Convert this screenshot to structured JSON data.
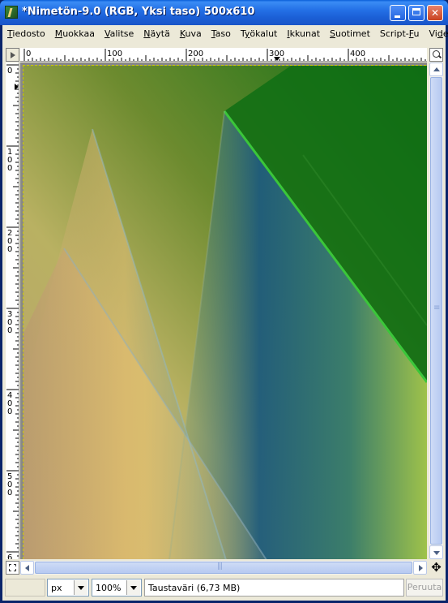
{
  "window": {
    "title": "*Nimetön-9.0 (RGB, Yksi taso) 500x610",
    "icon": "gimp-image-icon"
  },
  "menu": [
    {
      "pre": "",
      "ul": "T",
      "post": "iedosto"
    },
    {
      "pre": "",
      "ul": "M",
      "post": "uokkaa"
    },
    {
      "pre": "",
      "ul": "V",
      "post": "alitse"
    },
    {
      "pre": "",
      "ul": "N",
      "post": "äytä"
    },
    {
      "pre": "",
      "ul": "K",
      "post": "uva"
    },
    {
      "pre": "",
      "ul": "T",
      "post": "aso"
    },
    {
      "pre": "T",
      "ul": "y",
      "post": "ökalut"
    },
    {
      "pre": "",
      "ul": "I",
      "post": "kkunat"
    },
    {
      "pre": "",
      "ul": "S",
      "post": "uotimet"
    },
    {
      "pre": "Script-",
      "ul": "F",
      "post": "u"
    },
    {
      "pre": "Vi",
      "ul": "d",
      "post": "eo"
    }
  ],
  "rulers": {
    "horizontal_labels": [
      "0",
      "100",
      "200",
      "300",
      "400"
    ],
    "vertical_labels": [
      "0",
      "100",
      "200",
      "300",
      "400",
      "500",
      "6"
    ]
  },
  "statusbar": {
    "unit": "px",
    "zoom": "100%",
    "message": "Taustaväri (6,73 MB)",
    "cancel_label": "Peruuta"
  },
  "colors": {
    "dark_green": "#0f6e14",
    "olive": "#6f8a2e",
    "tan": "#c8a46a",
    "blue": "#23587a",
    "lime": "#9fc24a"
  }
}
